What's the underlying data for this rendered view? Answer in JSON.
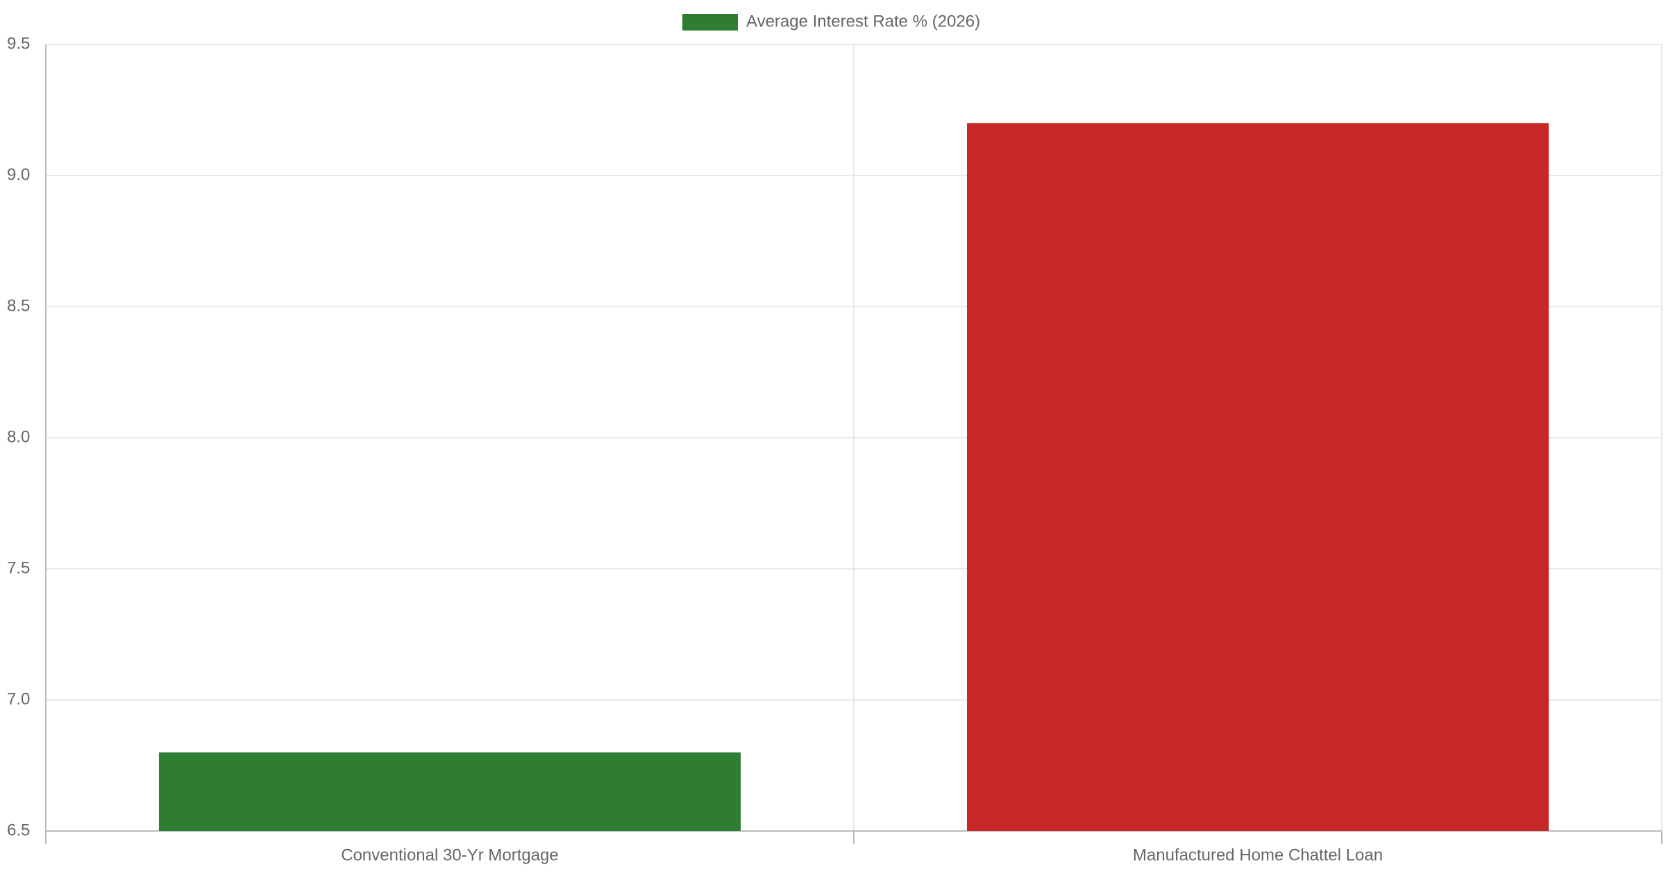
{
  "chart_data": {
    "type": "bar",
    "categories": [
      "Conventional 30-Yr Mortgage",
      "Manufactured Home Chattel Loan"
    ],
    "series": [
      {
        "name": "Average Interest Rate % (2026)",
        "colors": [
          "#2e7d32",
          "#c62828"
        ],
        "values": [
          6.8,
          9.2
        ]
      }
    ],
    "ylim": [
      6.5,
      9.5
    ],
    "yticks": [
      6.5,
      {
        "value": 7,
        "label": "7.0"
      },
      7.5,
      {
        "value": 8,
        "label": "8.0"
      },
      8.5,
      {
        "value": 9,
        "label": "9.0"
      },
      9.5
    ],
    "grid": true,
    "legend": "top"
  }
}
